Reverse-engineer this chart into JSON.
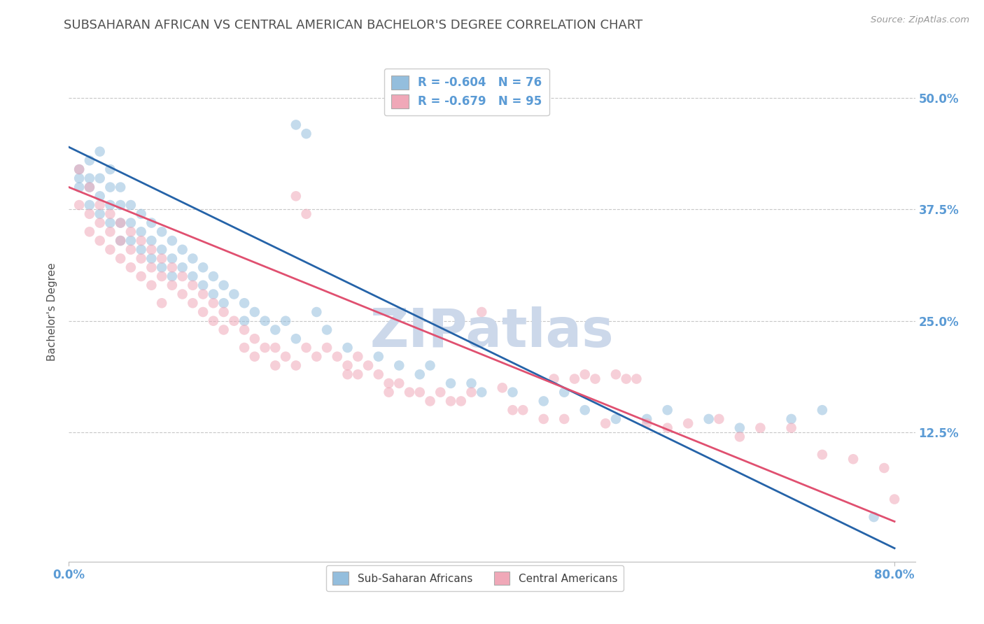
{
  "title": "SUBSAHARAN AFRICAN VS CENTRAL AMERICAN BACHELOR'S DEGREE CORRELATION CHART",
  "source": "Source: ZipAtlas.com",
  "ylabel": "Bachelor's Degree",
  "xlim": [
    0.0,
    0.82
  ],
  "ylim": [
    -0.02,
    0.54
  ],
  "yticks": [
    0.0,
    0.125,
    0.25,
    0.375,
    0.5
  ],
  "right_ytick_labels": [
    "",
    "12.5%",
    "25.0%",
    "37.5%",
    "50.0%"
  ],
  "xtick_positions": [
    0.0,
    0.8
  ],
  "xtick_labels": [
    "0.0%",
    "80.0%"
  ],
  "legend_top": [
    {
      "label": "R = -0.604   N = 76",
      "color": "#aec6e8"
    },
    {
      "label": "R = -0.679   N = 95",
      "color": "#f4b8c1"
    }
  ],
  "legend_bottom": [
    {
      "label": "Sub-Saharan Africans",
      "color": "#aec6e8"
    },
    {
      "label": "Central Americans",
      "color": "#f4b8c1"
    }
  ],
  "blue_scatter": [
    [
      0.01,
      0.42
    ],
    [
      0.01,
      0.41
    ],
    [
      0.01,
      0.4
    ],
    [
      0.02,
      0.43
    ],
    [
      0.02,
      0.41
    ],
    [
      0.02,
      0.4
    ],
    [
      0.02,
      0.38
    ],
    [
      0.03,
      0.44
    ],
    [
      0.03,
      0.41
    ],
    [
      0.03,
      0.39
    ],
    [
      0.03,
      0.37
    ],
    [
      0.04,
      0.42
    ],
    [
      0.04,
      0.4
    ],
    [
      0.04,
      0.38
    ],
    [
      0.04,
      0.36
    ],
    [
      0.05,
      0.4
    ],
    [
      0.05,
      0.38
    ],
    [
      0.05,
      0.36
    ],
    [
      0.05,
      0.34
    ],
    [
      0.06,
      0.38
    ],
    [
      0.06,
      0.36
    ],
    [
      0.06,
      0.34
    ],
    [
      0.07,
      0.37
    ],
    [
      0.07,
      0.35
    ],
    [
      0.07,
      0.33
    ],
    [
      0.08,
      0.36
    ],
    [
      0.08,
      0.34
    ],
    [
      0.08,
      0.32
    ],
    [
      0.09,
      0.35
    ],
    [
      0.09,
      0.33
    ],
    [
      0.09,
      0.31
    ],
    [
      0.1,
      0.34
    ],
    [
      0.1,
      0.32
    ],
    [
      0.1,
      0.3
    ],
    [
      0.11,
      0.33
    ],
    [
      0.11,
      0.31
    ],
    [
      0.12,
      0.32
    ],
    [
      0.12,
      0.3
    ],
    [
      0.13,
      0.31
    ],
    [
      0.13,
      0.29
    ],
    [
      0.14,
      0.3
    ],
    [
      0.14,
      0.28
    ],
    [
      0.15,
      0.29
    ],
    [
      0.15,
      0.27
    ],
    [
      0.16,
      0.28
    ],
    [
      0.17,
      0.27
    ],
    [
      0.17,
      0.25
    ],
    [
      0.18,
      0.26
    ],
    [
      0.19,
      0.25
    ],
    [
      0.2,
      0.24
    ],
    [
      0.21,
      0.25
    ],
    [
      0.22,
      0.23
    ],
    [
      0.22,
      0.47
    ],
    [
      0.23,
      0.46
    ],
    [
      0.24,
      0.26
    ],
    [
      0.25,
      0.24
    ],
    [
      0.27,
      0.22
    ],
    [
      0.3,
      0.21
    ],
    [
      0.32,
      0.2
    ],
    [
      0.34,
      0.19
    ],
    [
      0.35,
      0.2
    ],
    [
      0.37,
      0.18
    ],
    [
      0.39,
      0.18
    ],
    [
      0.4,
      0.17
    ],
    [
      0.43,
      0.17
    ],
    [
      0.46,
      0.16
    ],
    [
      0.48,
      0.17
    ],
    [
      0.5,
      0.15
    ],
    [
      0.53,
      0.14
    ],
    [
      0.56,
      0.14
    ],
    [
      0.58,
      0.15
    ],
    [
      0.62,
      0.14
    ],
    [
      0.65,
      0.13
    ],
    [
      0.7,
      0.14
    ],
    [
      0.73,
      0.15
    ],
    [
      0.78,
      0.03
    ]
  ],
  "pink_scatter": [
    [
      0.01,
      0.42
    ],
    [
      0.01,
      0.38
    ],
    [
      0.02,
      0.4
    ],
    [
      0.02,
      0.37
    ],
    [
      0.02,
      0.35
    ],
    [
      0.03,
      0.38
    ],
    [
      0.03,
      0.36
    ],
    [
      0.03,
      0.34
    ],
    [
      0.04,
      0.37
    ],
    [
      0.04,
      0.35
    ],
    [
      0.04,
      0.33
    ],
    [
      0.05,
      0.36
    ],
    [
      0.05,
      0.34
    ],
    [
      0.05,
      0.32
    ],
    [
      0.06,
      0.35
    ],
    [
      0.06,
      0.33
    ],
    [
      0.06,
      0.31
    ],
    [
      0.07,
      0.34
    ],
    [
      0.07,
      0.32
    ],
    [
      0.07,
      0.3
    ],
    [
      0.08,
      0.33
    ],
    [
      0.08,
      0.31
    ],
    [
      0.08,
      0.29
    ],
    [
      0.09,
      0.32
    ],
    [
      0.09,
      0.3
    ],
    [
      0.09,
      0.27
    ],
    [
      0.1,
      0.31
    ],
    [
      0.1,
      0.29
    ],
    [
      0.11,
      0.3
    ],
    [
      0.11,
      0.28
    ],
    [
      0.12,
      0.29
    ],
    [
      0.12,
      0.27
    ],
    [
      0.13,
      0.28
    ],
    [
      0.13,
      0.26
    ],
    [
      0.14,
      0.27
    ],
    [
      0.14,
      0.25
    ],
    [
      0.15,
      0.26
    ],
    [
      0.15,
      0.24
    ],
    [
      0.16,
      0.25
    ],
    [
      0.17,
      0.24
    ],
    [
      0.17,
      0.22
    ],
    [
      0.18,
      0.23
    ],
    [
      0.18,
      0.21
    ],
    [
      0.19,
      0.22
    ],
    [
      0.2,
      0.22
    ],
    [
      0.2,
      0.2
    ],
    [
      0.21,
      0.21
    ],
    [
      0.22,
      0.2
    ],
    [
      0.22,
      0.39
    ],
    [
      0.23,
      0.37
    ],
    [
      0.23,
      0.22
    ],
    [
      0.24,
      0.21
    ],
    [
      0.25,
      0.22
    ],
    [
      0.26,
      0.21
    ],
    [
      0.27,
      0.2
    ],
    [
      0.27,
      0.19
    ],
    [
      0.28,
      0.21
    ],
    [
      0.28,
      0.19
    ],
    [
      0.29,
      0.2
    ],
    [
      0.3,
      0.19
    ],
    [
      0.31,
      0.18
    ],
    [
      0.31,
      0.17
    ],
    [
      0.32,
      0.18
    ],
    [
      0.33,
      0.17
    ],
    [
      0.34,
      0.17
    ],
    [
      0.35,
      0.16
    ],
    [
      0.36,
      0.17
    ],
    [
      0.37,
      0.16
    ],
    [
      0.38,
      0.16
    ],
    [
      0.39,
      0.17
    ],
    [
      0.4,
      0.26
    ],
    [
      0.42,
      0.175
    ],
    [
      0.43,
      0.15
    ],
    [
      0.44,
      0.15
    ],
    [
      0.46,
      0.14
    ],
    [
      0.47,
      0.185
    ],
    [
      0.48,
      0.14
    ],
    [
      0.49,
      0.185
    ],
    [
      0.5,
      0.19
    ],
    [
      0.51,
      0.185
    ],
    [
      0.52,
      0.135
    ],
    [
      0.53,
      0.19
    ],
    [
      0.54,
      0.185
    ],
    [
      0.55,
      0.185
    ],
    [
      0.56,
      0.135
    ],
    [
      0.58,
      0.13
    ],
    [
      0.6,
      0.135
    ],
    [
      0.63,
      0.14
    ],
    [
      0.65,
      0.12
    ],
    [
      0.67,
      0.13
    ],
    [
      0.7,
      0.13
    ],
    [
      0.73,
      0.1
    ],
    [
      0.76,
      0.095
    ],
    [
      0.79,
      0.085
    ],
    [
      0.8,
      0.05
    ]
  ],
  "blue_line": {
    "x": [
      0.0,
      0.8
    ],
    "y": [
      0.445,
      -0.005
    ]
  },
  "pink_line": {
    "x": [
      0.0,
      0.8
    ],
    "y": [
      0.4,
      0.025
    ]
  },
  "scatter_size": 110,
  "scatter_alpha": 0.55,
  "blue_color": "#94bedd",
  "pink_color": "#f0a8b8",
  "blue_line_color": "#2563a8",
  "pink_line_color": "#e05070",
  "grid_color": "#c8c8c8",
  "bg_color": "#ffffff",
  "title_color": "#505050",
  "axis_label_color": "#5b9bd5",
  "ylabel_color": "#505050",
  "watermark_text": "ZIPatlas",
  "watermark_color": "#ccd8ea",
  "watermark_fontsize": 55
}
